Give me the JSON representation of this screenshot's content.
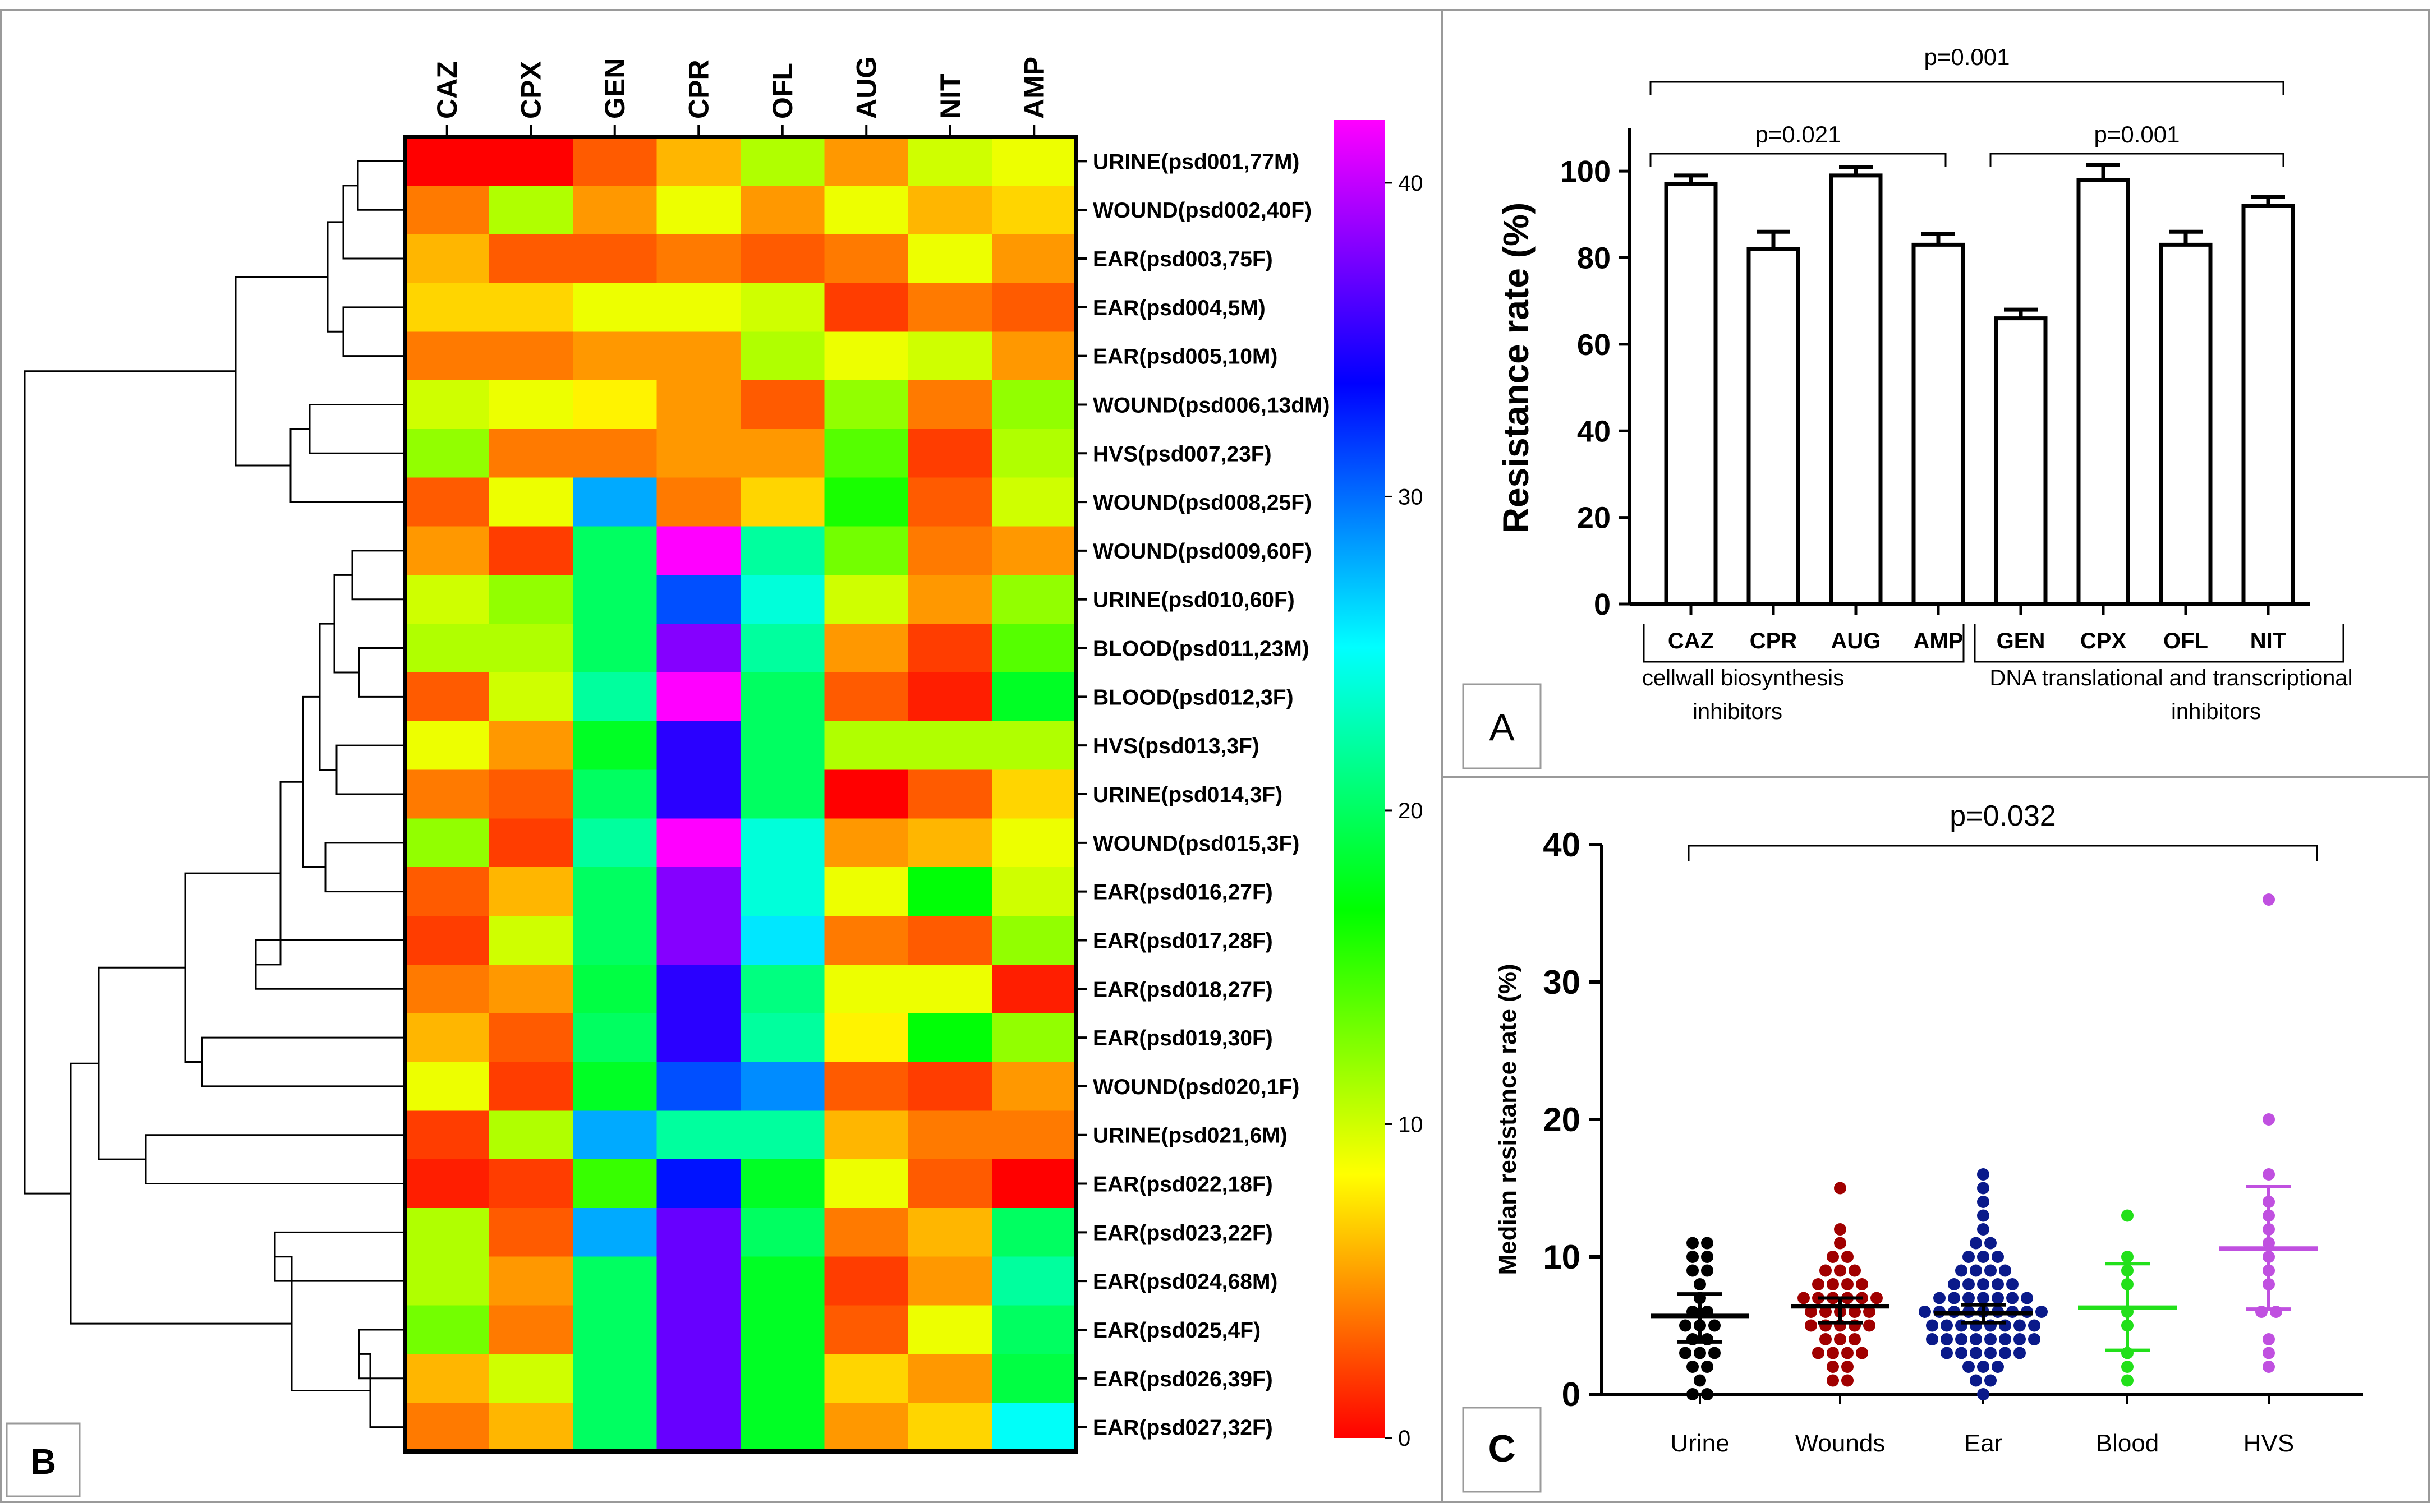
{
  "panel_labels": {
    "a": "A",
    "b": "B",
    "c": "C"
  },
  "chart_data": [
    {
      "type": "heatmap",
      "panel": "B",
      "columns": [
        "CAZ",
        "CPX",
        "GEN",
        "CPR",
        "OFL",
        "AUG",
        "NIT",
        "AMP"
      ],
      "rows": [
        "URINE(psd001,77M)",
        "WOUND(psd002,40F)",
        "EAR(psd003,75F)",
        "EAR(psd004,5M)",
        "EAR(psd005,10M)",
        "WOUND(psd006,13dM)",
        "HVS(psd007,23F)",
        "WOUND(psd008,25F)",
        "WOUND(psd009,60F)",
        "URINE(psd010,60F)",
        "BLOOD(psd011,23M)",
        "BLOOD(psd012,3F)",
        "HVS(psd013,3F)",
        "URINE(psd014,3F)",
        "WOUND(psd015,3F)",
        "EAR(psd016,27F)",
        "EAR(psd017,28F)",
        "EAR(psd018,27F)",
        "EAR(psd019,30F)",
        "WOUND(psd020,1F)",
        "URINE(psd021,6M)",
        "EAR(psd022,18F)",
        "EAR(psd023,22F)",
        "EAR(psd024,68M)",
        "EAR(psd025,4F)",
        "EAR(psd026,39F)",
        "EAR(psd027,32F)"
      ],
      "values": [
        [
          0,
          0,
          3,
          6,
          11,
          5,
          10,
          9
        ],
        [
          4,
          11,
          5,
          9,
          5,
          9,
          6,
          7
        ],
        [
          6,
          3,
          3,
          4,
          3,
          4,
          9,
          5
        ],
        [
          7,
          7,
          9,
          9,
          10,
          2,
          4,
          3
        ],
        [
          4,
          4,
          5,
          5,
          11,
          9,
          10,
          5
        ],
        [
          10,
          9,
          8,
          5,
          3,
          12,
          4,
          12
        ],
        [
          12,
          4,
          4,
          5,
          5,
          14,
          2,
          11
        ],
        [
          3,
          9,
          28,
          4,
          7,
          16,
          3,
          10
        ],
        [
          5,
          2,
          20,
          42,
          22,
          13,
          4,
          5
        ],
        [
          10,
          12,
          20,
          31,
          24,
          10,
          5,
          12
        ],
        [
          11,
          11,
          20,
          38,
          22,
          5,
          2,
          14
        ],
        [
          3,
          10,
          22,
          42,
          20,
          3,
          1,
          18
        ],
        [
          9,
          5,
          18,
          35,
          20,
          11,
          11,
          11
        ],
        [
          4,
          3,
          20,
          35,
          20,
          0,
          3,
          7
        ],
        [
          12,
          2,
          22,
          42,
          24,
          5,
          6,
          9
        ],
        [
          3,
          6,
          20,
          38,
          24,
          9,
          17,
          10
        ],
        [
          2,
          10,
          20,
          38,
          26,
          4,
          3,
          12
        ],
        [
          4,
          5,
          19,
          35,
          21,
          9,
          9,
          1
        ],
        [
          6,
          3,
          20,
          35,
          22,
          8,
          17,
          12
        ],
        [
          9,
          2,
          18,
          31,
          29,
          3,
          2,
          5
        ],
        [
          2,
          11,
          28,
          22,
          22,
          6,
          4,
          4
        ],
        [
          1,
          2,
          15,
          33,
          18,
          9,
          3,
          0
        ],
        [
          11,
          3,
          28,
          37,
          20,
          4,
          6,
          20
        ],
        [
          11,
          5,
          20,
          37,
          18,
          2,
          5,
          22
        ],
        [
          13,
          4,
          20,
          37,
          18,
          3,
          9,
          20
        ],
        [
          6,
          10,
          20,
          37,
          18,
          7,
          5,
          19
        ],
        [
          4,
          6,
          20,
          37,
          18,
          5,
          7,
          25
        ]
      ],
      "colorbar": {
        "min": 0,
        "max": 42,
        "ticks": [
          0,
          10,
          20,
          30,
          40
        ]
      }
    },
    {
      "type": "bar",
      "panel": "A",
      "ylabel": "Resistance rate (%)",
      "ylim": [
        0,
        110
      ],
      "yticks": [
        0,
        20,
        40,
        60,
        80,
        100
      ],
      "categories": [
        "CAZ",
        "CPR",
        "AUG",
        "AMP",
        "GEN",
        "CPX",
        "OFL",
        "NIT"
      ],
      "values": [
        97,
        82,
        99,
        83,
        66,
        98,
        83,
        92
      ],
      "errors": [
        2,
        4,
        2,
        2.5,
        2,
        3.5,
        3,
        2
      ],
      "groups": [
        {
          "line1": "cellwall biosynthesis",
          "line2": "inhibitors"
        },
        {
          "line1": "DNA translational and transcriptional",
          "line2": "inhibitors"
        }
      ],
      "significance": [
        {
          "label": "p=0.001",
          "from": "CAZ",
          "to": "NIT"
        },
        {
          "label": "p=0.021",
          "from": "CAZ",
          "to": "AMP"
        },
        {
          "label": "p=0.001",
          "from": "GEN",
          "to": "NIT"
        }
      ]
    },
    {
      "type": "scatter",
      "panel": "C",
      "ylabel": "Median resistance rate (%)",
      "ylim": [
        0,
        40
      ],
      "yticks": [
        0,
        10,
        20,
        30,
        40
      ],
      "categories": [
        "Urine",
        "Wounds",
        "Ear",
        "Blood",
        "HVS"
      ],
      "colors": [
        "#000000",
        "#a00000",
        "#0a1a8a",
        "#22e01a",
        "#c050e0"
      ],
      "medians": [
        5.7,
        6.4,
        5.9,
        6.3,
        10.6
      ],
      "bar_low": [
        3.8,
        5.2,
        5.2,
        3.2,
        6.2
      ],
      "bar_high": [
        7.3,
        7.0,
        6.5,
        9.5,
        15.1
      ],
      "points": [
        [
          0,
          0,
          1,
          2,
          2,
          3,
          3,
          3,
          4,
          4,
          5,
          5,
          5,
          6,
          6,
          7,
          8,
          9,
          9,
          10,
          10,
          11,
          11
        ],
        [
          1,
          1,
          2,
          2,
          3,
          3,
          3,
          3,
          4,
          4,
          4,
          5,
          5,
          5,
          5,
          5,
          6,
          6,
          6,
          6,
          6,
          7,
          7,
          7,
          7,
          7,
          7,
          8,
          8,
          8,
          8,
          9,
          9,
          9,
          10,
          10,
          11,
          12,
          15
        ],
        [
          0,
          1,
          1,
          2,
          2,
          2,
          3,
          3,
          3,
          3,
          3,
          3,
          4,
          4,
          4,
          4,
          4,
          4,
          4,
          4,
          5,
          5,
          5,
          5,
          5,
          5,
          5,
          5,
          6,
          6,
          6,
          6,
          6,
          6,
          6,
          6,
          6,
          7,
          7,
          7,
          7,
          7,
          7,
          7,
          8,
          8,
          8,
          8,
          8,
          9,
          9,
          9,
          9,
          10,
          10,
          10,
          11,
          11,
          12,
          13,
          14,
          15,
          16
        ],
        [
          1,
          2,
          3,
          5,
          6,
          8,
          9,
          10,
          13
        ],
        [
          2,
          3,
          4,
          6,
          6,
          8,
          9,
          10,
          11,
          12,
          13,
          14,
          16,
          20,
          36
        ]
      ],
      "significance": {
        "label": "p=0.032",
        "from": "Urine",
        "to": "HVS"
      }
    }
  ]
}
